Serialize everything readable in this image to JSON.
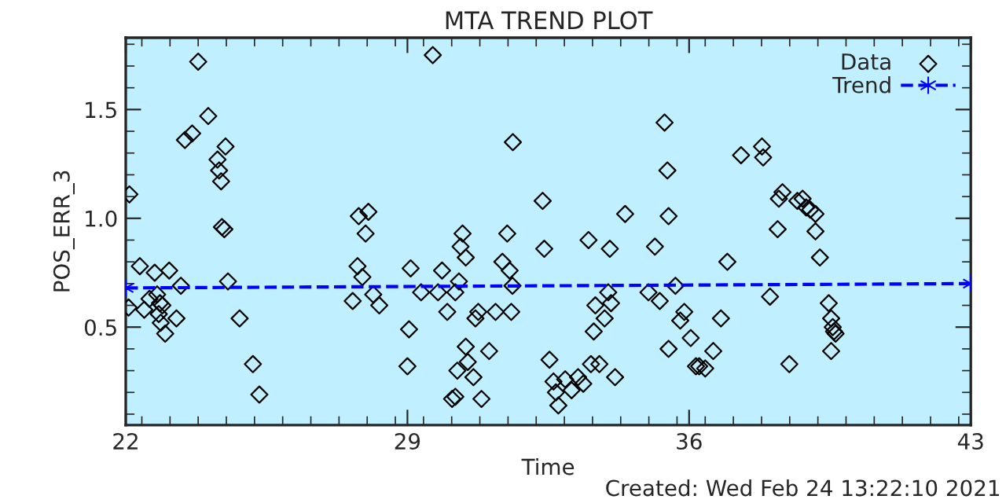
{
  "chart_data": {
    "type": "scatter",
    "title": "MTA TREND PLOT",
    "xlabel": "Time",
    "ylabel": "POS_ERR_3",
    "annotations": [
      "Created: Wed Feb 24 13:22:10 2021"
    ],
    "xlim": [
      22,
      43
    ],
    "xticks": [
      22,
      29,
      36,
      43
    ],
    "ylim": [
      0.05,
      1.83
    ],
    "yticks": [
      {
        "value": 0.5,
        "label": "0.5"
      },
      {
        "value": 1.0,
        "label": "1.0"
      },
      {
        "value": 1.5,
        "label": "1.5"
      }
    ],
    "legend": "top right",
    "grid": false,
    "series": [
      {
        "name": "Data",
        "marker": "diamond",
        "color": "#000000",
        "x": [
          22.09,
          22.35,
          22.72,
          23.08,
          22.07,
          22.46,
          22.59,
          22.78,
          22.85,
          22.91,
          22.82,
          22.87,
          22.98,
          23.26,
          23.37,
          23.8,
          24.05,
          23.47,
          23.65,
          24.28,
          24.48,
          24.32,
          24.37,
          24.39,
          24.45,
          24.54,
          24.83,
          25.16,
          25.32,
          27.64,
          27.76,
          27.88,
          28.15,
          28.3,
          27.79,
          28.03,
          27.96,
          29.08,
          29.04,
          29.0,
          29.63,
          29.34,
          29.76,
          29.86,
          29.99,
          30.11,
          30.19,
          30.24,
          30.19,
          30.28,
          30.32,
          30.37,
          30.45,
          30.45,
          30.5,
          30.64,
          30.69,
          30.76,
          30.84,
          31.03,
          31.19,
          31.36,
          31.48,
          31.54,
          31.58,
          31.61,
          31.62,
          32.36,
          32.4,
          32.53,
          32.63,
          32.69,
          32.75,
          32.92,
          33.08,
          33.24,
          33.37,
          33.5,
          33.56,
          33.63,
          33.67,
          33.77,
          33.9,
          34.03,
          33.99,
          34.06,
          34.16,
          34.41,
          34.99,
          35.15,
          35.27,
          35.39,
          35.46,
          35.49,
          35.49,
          35.66,
          35.78,
          35.88,
          36.04,
          36.17,
          36.6,
          36.25,
          36.4,
          36.79,
          36.95,
          37.29,
          37.81,
          37.84,
          38.01,
          38.2,
          38.23,
          38.32,
          38.49,
          38.69,
          38.82,
          38.91,
          39.01,
          39.14,
          39.14,
          39.25,
          39.47,
          39.53,
          39.57,
          39.6,
          39.64,
          39.53
        ],
        "values": [
          1.11,
          0.78,
          0.75,
          0.76,
          0.59,
          0.58,
          0.63,
          0.65,
          0.61,
          0.6,
          0.56,
          0.52,
          0.47,
          0.54,
          0.69,
          1.72,
          1.47,
          1.36,
          1.39,
          1.27,
          1.33,
          1.22,
          1.17,
          0.96,
          0.95,
          0.71,
          0.54,
          0.33,
          0.19,
          0.62,
          0.78,
          0.73,
          0.65,
          0.6,
          1.01,
          1.03,
          0.93,
          0.77,
          0.49,
          0.32,
          1.75,
          0.66,
          0.66,
          0.76,
          0.57,
          0.17,
          0.18,
          0.3,
          0.66,
          0.71,
          0.87,
          0.93,
          0.82,
          0.41,
          0.34,
          0.27,
          0.54,
          0.57,
          0.17,
          0.39,
          0.57,
          0.8,
          0.93,
          0.76,
          0.57,
          0.69,
          1.35,
          1.08,
          0.86,
          0.35,
          0.25,
          0.2,
          0.14,
          0.26,
          0.21,
          0.27,
          0.24,
          0.9,
          0.33,
          0.48,
          0.6,
          0.33,
          0.54,
          0.86,
          0.66,
          0.61,
          0.27,
          1.02,
          0.66,
          0.87,
          0.62,
          1.44,
          1.22,
          1.01,
          0.4,
          0.69,
          0.53,
          0.57,
          0.45,
          0.32,
          0.39,
          0.32,
          0.31,
          0.54,
          0.8,
          1.29,
          1.33,
          1.28,
          0.64,
          0.95,
          1.09,
          1.12,
          0.33,
          1.08,
          1.09,
          1.05,
          1.04,
          1.02,
          0.94,
          0.82,
          0.61,
          0.54,
          0.5,
          0.48,
          0.47,
          0.39
        ]
      },
      {
        "name": "Trend",
        "type": "line",
        "marker": "cross",
        "line_style": "dashed",
        "color": "#0000ff",
        "x": [
          22,
          43
        ],
        "values": [
          0.68,
          0.7
        ]
      }
    ]
  }
}
